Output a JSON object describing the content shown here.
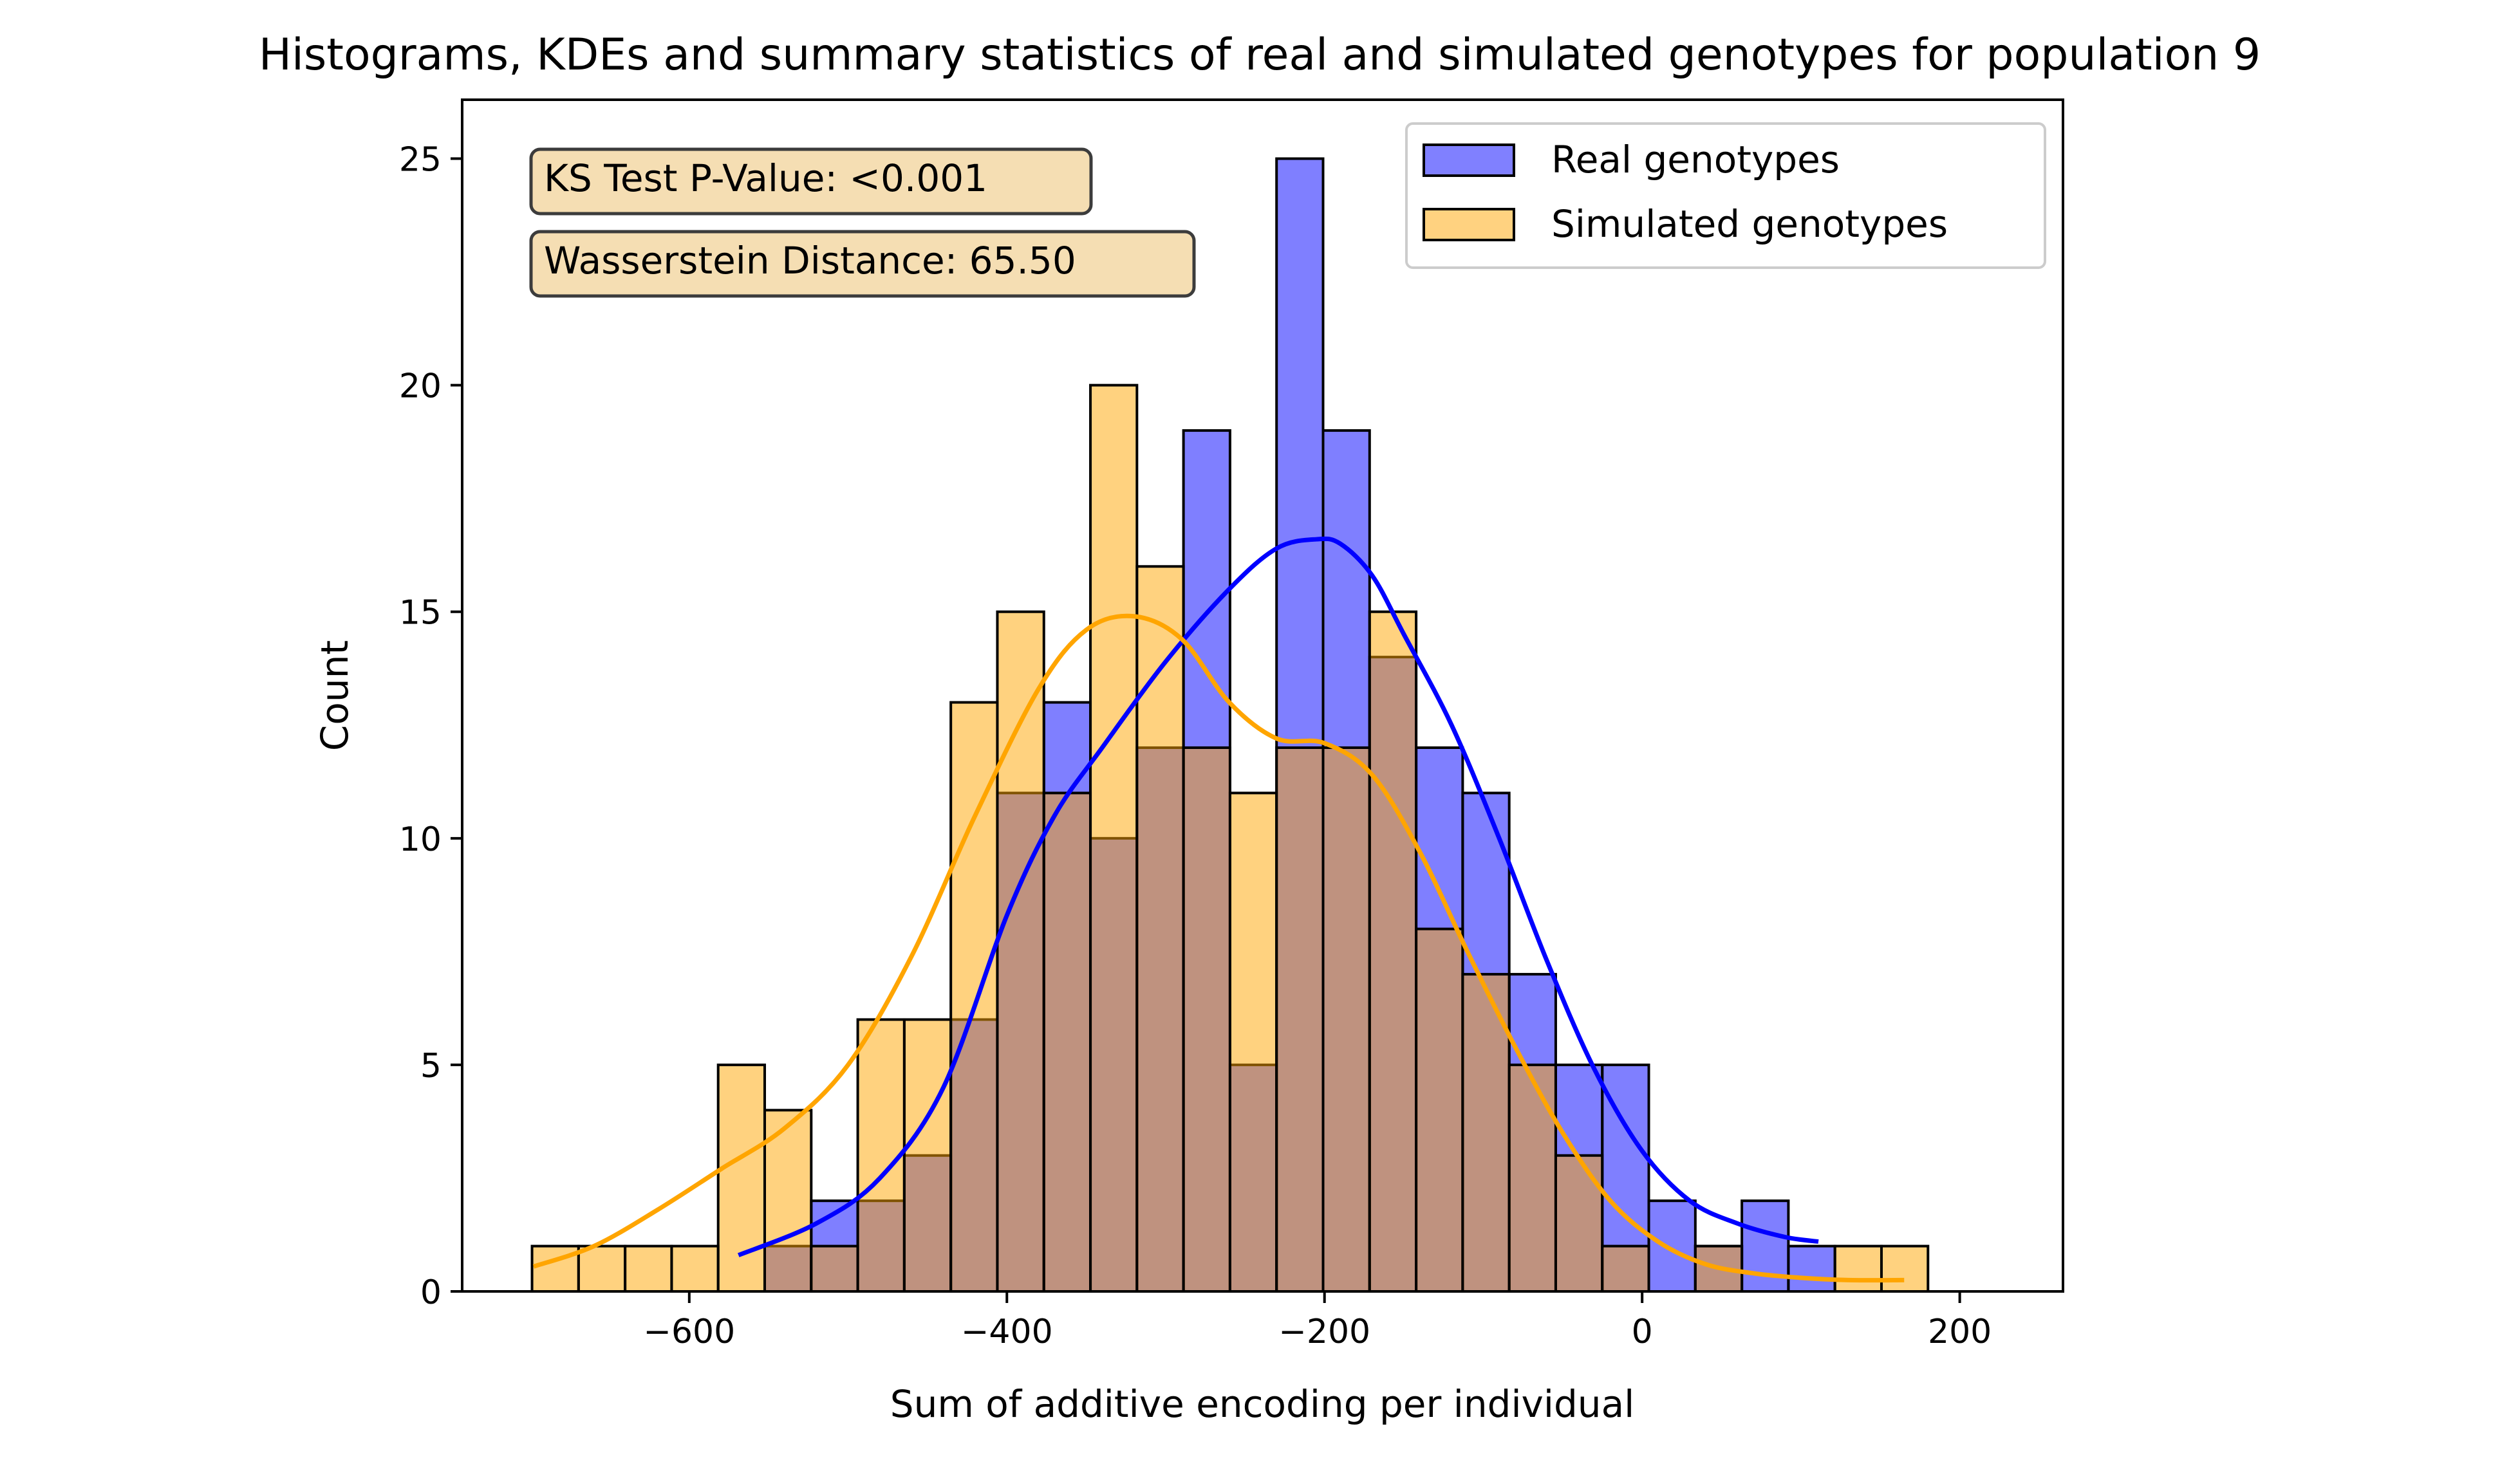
{
  "chart_data": {
    "type": "bar",
    "title": "Histograms, KDEs and summary statistics of real and simulated genotypes for population 9",
    "xlabel": "Sum of additive encoding per individual",
    "ylabel": "Count",
    "xlim": [
      -743,
      265
    ],
    "ylim": [
      0,
      26.3
    ],
    "xticks": [
      -600,
      -400,
      -200,
      0,
      200
    ],
    "xtick_labels": [
      "−600",
      "−400",
      "−200",
      "0",
      "200"
    ],
    "yticks": [
      0,
      5,
      10,
      15,
      20,
      25
    ],
    "ytick_labels": [
      "0",
      "5",
      "10",
      "15",
      "20",
      "25"
    ],
    "bin_edges": [
      -699,
      -669.7,
      -640.4,
      -611.1,
      -581.8,
      -552.5,
      -523.2,
      -493.9,
      -464.6,
      -435.3,
      -406,
      -376.7,
      -347.4,
      -318.1,
      -288.8,
      -259.5,
      -230.2,
      -200.9,
      -171.6,
      -142.3,
      -113,
      -83.7,
      -54.4,
      -25.1,
      4.2,
      33.5,
      62.8,
      92.1,
      121.4,
      150.7,
      180
    ],
    "series": [
      {
        "name": "Real genotypes",
        "color": "#0000ff",
        "fill_alpha": 0.5,
        "counts": [
          0,
          0,
          0,
          0,
          0,
          1,
          2,
          2,
          3,
          6,
          11,
          13,
          10,
          12,
          19,
          5,
          25,
          19,
          14,
          12,
          11,
          7,
          5,
          5,
          2,
          1,
          2,
          1,
          0,
          0
        ],
        "kde_x": [
          -569,
          -520,
          -480,
          -440,
          -400,
          -370,
          -340,
          -300,
          -260,
          -230,
          -205,
          -190,
          -170,
          -150,
          -120,
          -90,
          -60,
          -30,
          0,
          30,
          60,
          90,
          111
        ],
        "kde_y": [
          0.8,
          1.5,
          2.5,
          4.5,
          8.3,
          10.5,
          12.0,
          13.9,
          15.5,
          16.4,
          16.6,
          16.5,
          15.8,
          14.5,
          12.5,
          10.0,
          7.3,
          4.9,
          3.1,
          2.0,
          1.5,
          1.2,
          1.1
        ]
      },
      {
        "name": "Simulated genotypes",
        "color": "#ffa500",
        "fill_alpha": 0.5,
        "counts": [
          1,
          1,
          1,
          1,
          5,
          4,
          1,
          6,
          6,
          13,
          15,
          11,
          20,
          16,
          12,
          11,
          12,
          12,
          15,
          8,
          7,
          5,
          3,
          1,
          0,
          1,
          0,
          0,
          1,
          1
        ],
        "kde_x": [
          -698,
          -660,
          -620,
          -580,
          -540,
          -500,
          -460,
          -420,
          -380,
          -350,
          -320,
          -290,
          -260,
          -230,
          -200,
          -170,
          -140,
          -110,
          -80,
          -50,
          -20,
          10,
          40,
          70,
          100,
          130,
          165
        ],
        "kde_y": [
          0.55,
          1.0,
          1.8,
          2.7,
          3.6,
          5.0,
          7.4,
          10.5,
          13.3,
          14.6,
          14.9,
          14.4,
          13.0,
          12.2,
          12.1,
          11.4,
          9.7,
          7.5,
          5.4,
          3.5,
          2.0,
          1.1,
          0.6,
          0.4,
          0.3,
          0.25,
          0.25
        ]
      }
    ],
    "legend": {
      "placement": "top-right"
    },
    "annotations": [
      "KS Test P-Value: <0.001",
      "Wasserstein Distance: 65.50"
    ],
    "annotation_box_color": "#f5deb3",
    "overlap_color": "#bf8d7a",
    "grid": false
  }
}
